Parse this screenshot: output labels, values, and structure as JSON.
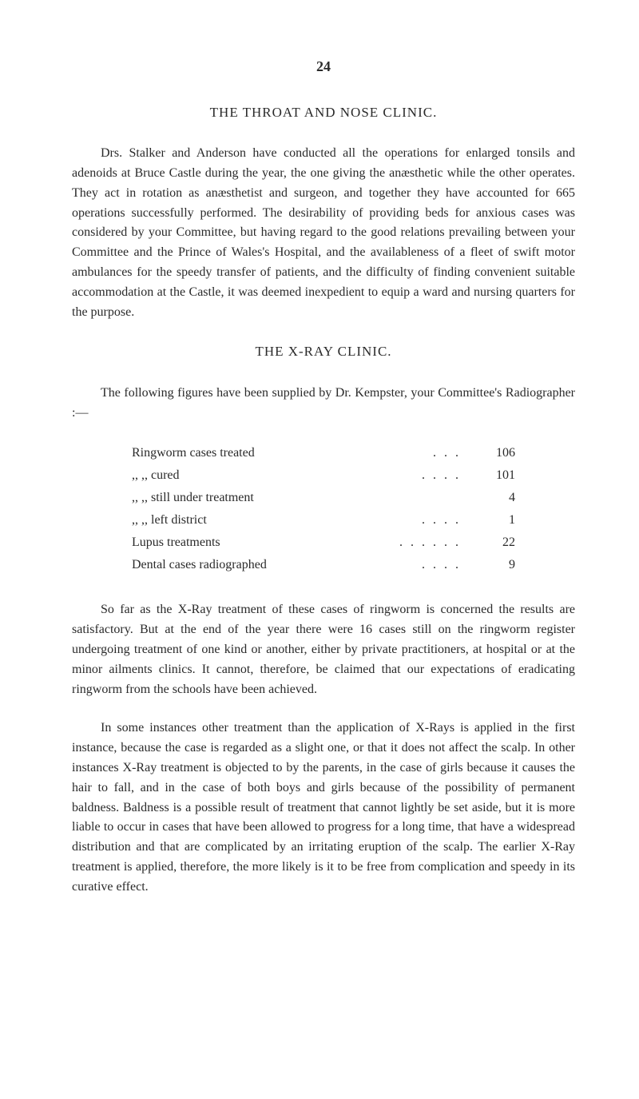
{
  "page_number": "24",
  "section1": {
    "title": "THE THROAT AND NOSE CLINIC.",
    "paragraph": "Drs. Stalker and Anderson have conducted all the operations for enlarged tonsils and adenoids at Bruce Castle during the year, the one giving the anæsthetic while the other operates. They act in rotation as anæsthetist and surgeon, and together they have accounted for 665 operations successfully performed. The desirability of providing beds for anxious cases was considered by your Committee, but having regard to the good relations prevailing between your Committee and the Prince of Wales's Hospital, and the availableness of a fleet of swift motor ambulances for the speedy transfer of patients, and the difficulty of finding convenient suitable accommodation at the Castle, it was deemed inexpedient to equip a ward and nursing quarters for the purpose."
  },
  "section2": {
    "title": "THE X-RAY CLINIC.",
    "intro": "The following figures have been supplied by Dr. Kempster, your Committee's Radiographer :—",
    "table": {
      "rows": [
        {
          "label": "Ringworm cases treated",
          "value": "106"
        },
        {
          "label": ",,          ,,   cured",
          "value": "101"
        },
        {
          "label": ",,          ,,   still under treatment",
          "value": "4"
        },
        {
          "label": ",,          ,,   left district",
          "value": "1"
        },
        {
          "label": "Lupus treatments",
          "value": "22"
        },
        {
          "label": "Dental cases radiographed",
          "value": "9"
        }
      ]
    },
    "para2": "So far as the X-Ray treatment of these cases of ringworm is concerned the results are satisfactory. But at the end of the year there were 16 cases still on the ringworm register undergoing treatment of one kind or another, either by private practitioners, at hospital or at the minor ailments clinics. It cannot, therefore, be claimed that our expectations of eradicating ringworm from the schools have been achieved.",
    "para3": "In some instances other treatment than the application of X-Rays is applied in the first instance, because the case is regarded as a slight one, or that it does not affect the scalp. In other instances X-Ray treatment is objected to by the parents, in the case of girls because it causes the hair to fall, and in the case of both boys and girls because of the possibility of permanent baldness. Baldness is a possible result of treatment that cannot lightly be set aside, but it is more liable to occur in cases that have been allowed to progress for a long time, that have a widespread distribution and that are complicated by an irritating eruption of the scalp. The earlier X-Ray treatment is applied, therefore, the more likely is it to be free from complication and speedy in its curative effect."
  }
}
